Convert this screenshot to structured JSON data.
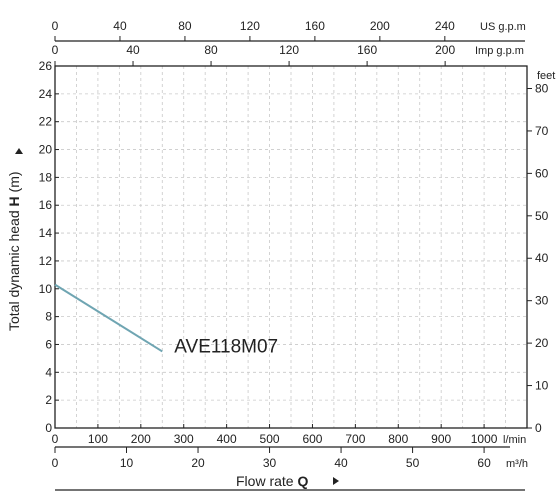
{
  "chart_data": {
    "type": "line",
    "xlabel": "Flow rate",
    "xlabel_symbol": "Q",
    "ylabel": "Total dynamic head",
    "ylabel_symbol": "H",
    "ylabel_unit": "(m)",
    "xlim": [
      0,
      1100
    ],
    "ylim": [
      0,
      26
    ],
    "grid": true,
    "axes": {
      "bottom_lmin": {
        "unit": "l/min",
        "ticks": [
          0,
          100,
          200,
          300,
          400,
          500,
          600,
          700,
          800,
          900,
          1000
        ]
      },
      "bottom_m3h": {
        "unit": "m³/h",
        "ticks": [
          0,
          10,
          20,
          30,
          40,
          50,
          60
        ]
      },
      "top_usgpm": {
        "unit": "US g.p.m",
        "ticks": [
          0,
          40,
          80,
          120,
          160,
          200,
          240
        ]
      },
      "top_impgpm": {
        "unit": "Imp g.p.m",
        "ticks": [
          0,
          40,
          80,
          120,
          160,
          200
        ]
      },
      "left_m": {
        "unit": "",
        "ticks": [
          0,
          2,
          4,
          6,
          8,
          10,
          12,
          14,
          16,
          18,
          20,
          22,
          24,
          26
        ]
      },
      "right_feet": {
        "unit": "feet",
        "ticks": [
          0,
          10,
          20,
          30,
          40,
          50,
          60,
          70,
          80
        ]
      }
    },
    "series": [
      {
        "name": "AVE118M07",
        "color": "#6fa5b2",
        "x": [
          0,
          250
        ],
        "y": [
          10.3,
          5.5
        ]
      }
    ]
  }
}
